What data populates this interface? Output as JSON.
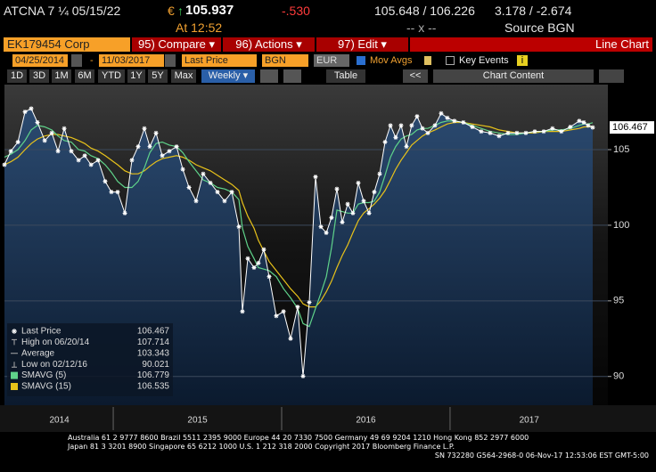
{
  "header": {
    "ticker": "ATCNA 7 ¼ 05/15/22",
    "currency": "€",
    "arrow": "↑",
    "price": "105.937",
    "change": "-.530",
    "bid_ask": "105.648 / 106.226",
    "yields": "3.178 / -2.674",
    "time": "At 12:52",
    "size": "-- x --",
    "source": "Source BGN"
  },
  "toolbar": {
    "security": "EK179454 Corp",
    "menus": [
      "95) Compare ▾",
      "96) Actions ▾",
      "97) Edit ▾"
    ],
    "view": "Line Chart"
  },
  "controls": {
    "start": "04/25/2014",
    "separator": "-",
    "end": "11/03/2017",
    "field": "Last Price",
    "source": "BGN",
    "currency": "EUR",
    "mov_avgs": "Mov Avgs",
    "key_events": "Key Events",
    "info": "i"
  },
  "ranges": [
    "1D",
    "3D",
    "1M",
    "6M",
    "YTD",
    "1Y",
    "5Y",
    "Max"
  ],
  "period": "Weekly ▾",
  "table": "Table",
  "back": "<<",
  "chart_content": "Chart Content",
  "chart_data": {
    "type": "line",
    "x": [
      2014.354,
      2014.392,
      2014.434,
      2014.476,
      2014.513,
      2014.55,
      2014.593,
      2014.635,
      2014.672,
      2014.709,
      2014.751,
      2014.794,
      2014.831,
      2014.868,
      2014.91,
      2014.952,
      2014.989,
      2015.026,
      2015.069,
      2015.111,
      2015.148,
      2015.185,
      2015.217,
      2015.254,
      2015.291,
      2015.333,
      2015.376,
      2015.413,
      2015.45,
      2015.492,
      2015.534,
      2015.577,
      2015.619,
      2015.661,
      2015.704,
      2015.746,
      2015.767,
      2015.799,
      2015.836,
      2015.862,
      2015.894,
      2015.926,
      2015.968,
      2016.011,
      2016.053,
      2016.095,
      2016.127,
      2016.164,
      2016.201,
      2016.233,
      2016.265,
      2016.296,
      2016.328,
      2016.36,
      2016.392,
      2016.423,
      2016.455,
      2016.487,
      2016.519,
      2016.55,
      2016.582,
      2016.614,
      2016.646,
      2016.677,
      2016.709,
      2016.741,
      2016.772,
      2016.804,
      2016.836,
      2016.868,
      2016.91,
      2016.947,
      2016.984,
      2017.026,
      2017.079,
      2017.132,
      2017.185,
      2017.238,
      2017.291,
      2017.344,
      2017.397,
      2017.45,
      2017.503,
      2017.556,
      2017.608,
      2017.661,
      2017.714,
      2017.767,
      2017.794,
      2017.82,
      2017.847
    ],
    "series": [
      {
        "name": "Last Price",
        "color": "#ffffff",
        "last_value": 106.467,
        "values": [
          104.0,
          104.9,
          105.5,
          107.5,
          107.714,
          106.8,
          105.6,
          106.1,
          104.9,
          106.4,
          104.9,
          104.3,
          104.6,
          104.0,
          104.3,
          102.9,
          102.2,
          102.2,
          100.8,
          104.3,
          105.2,
          106.4,
          105.2,
          106.1,
          104.6,
          104.9,
          105.2,
          103.7,
          102.5,
          101.6,
          103.4,
          102.8,
          102.2,
          101.6,
          102.2,
          99.9,
          94.3,
          97.8,
          97.2,
          97.5,
          98.4,
          96.6,
          94.0,
          94.3,
          92.5,
          94.6,
          90.021,
          94.9,
          103.2,
          99.9,
          99.5,
          100.5,
          102.4,
          100.2,
          101.4,
          100.8,
          102.8,
          101.6,
          100.8,
          102.2,
          103.4,
          105.5,
          106.6,
          105.8,
          106.6,
          105.2,
          106.6,
          107.2,
          106.4,
          106.1,
          106.6,
          107.4,
          107.1,
          106.9,
          106.8,
          106.5,
          106.2,
          106.1,
          105.9,
          106.1,
          106.1,
          106.1,
          106.2,
          106.2,
          106.4,
          106.2,
          106.5,
          106.9,
          106.8,
          106.6,
          106.467
        ]
      },
      {
        "name": "SMAVG (5)",
        "color": "#5fd38a",
        "last_value": 106.779,
        "values": [
          104.5,
          104.7,
          105.0,
          105.6,
          106.3,
          106.6,
          106.5,
          106.3,
          105.9,
          105.6,
          105.5,
          105.0,
          104.9,
          104.6,
          104.4,
          104.0,
          103.5,
          102.9,
          102.5,
          102.5,
          102.9,
          103.8,
          104.8,
          105.4,
          105.5,
          105.3,
          105.2,
          104.8,
          104.2,
          103.6,
          103.0,
          102.8,
          102.5,
          102.4,
          102.2,
          101.7,
          99.8,
          98.6,
          97.8,
          97.2,
          97.1,
          97.0,
          96.6,
          95.8,
          95.2,
          94.5,
          93.5,
          93.3,
          94.5,
          95.5,
          96.6,
          98.5,
          101.0,
          100.9,
          100.8,
          100.8,
          101.4,
          101.5,
          101.5,
          101.6,
          102.2,
          103.3,
          104.5,
          105.2,
          105.7,
          105.9,
          106.0,
          106.3,
          106.4,
          106.4,
          106.6,
          106.8,
          106.9,
          106.9,
          106.8,
          106.6,
          106.4,
          106.2,
          106.1,
          106.0,
          106.0,
          106.1,
          106.2,
          106.2,
          106.3,
          106.3,
          106.4,
          106.6,
          106.7,
          106.7,
          106.779
        ]
      },
      {
        "name": "SMAVG (15)",
        "color": "#e8c21a",
        "last_value": 106.535,
        "values": [
          104.0,
          104.2,
          104.5,
          105.0,
          105.4,
          105.7,
          105.9,
          106.0,
          106.0,
          105.9,
          105.8,
          105.6,
          105.4,
          105.1,
          104.9,
          104.6,
          104.3,
          104.0,
          103.6,
          103.4,
          103.4,
          103.6,
          103.9,
          104.2,
          104.4,
          104.5,
          104.6,
          104.5,
          104.3,
          104.0,
          103.8,
          103.6,
          103.3,
          103.0,
          102.7,
          102.3,
          101.5,
          100.6,
          99.8,
          99.0,
          98.3,
          97.6,
          97.0,
          96.4,
          95.8,
          95.3,
          94.8,
          94.6,
          94.6,
          95.0,
          95.6,
          96.3,
          97.2,
          98.0,
          98.7,
          99.5,
          100.3,
          100.8,
          101.1,
          101.4,
          101.8,
          102.3,
          103.0,
          103.7,
          104.3,
          104.8,
          105.3,
          105.6,
          105.9,
          106.1,
          106.3,
          106.5,
          106.7,
          106.8,
          106.8,
          106.7,
          106.6,
          106.5,
          106.3,
          106.2,
          106.1,
          106.1,
          106.1,
          106.2,
          106.2,
          106.2,
          106.3,
          106.4,
          106.5,
          106.5,
          106.535
        ]
      }
    ],
    "stats": [
      {
        "label": "High on 06/20/14",
        "value": 107.714
      },
      {
        "label": "Average",
        "value": 103.343
      },
      {
        "label": "Low on 02/12/16",
        "value": 90.021
      }
    ],
    "xlim": [
      2014.354,
      2017.937
    ],
    "xticks": [
      {
        "value": 2014.68,
        "label": "2014"
      },
      {
        "value": 2015.5,
        "label": "2015"
      },
      {
        "value": 2016.5,
        "label": "2016"
      },
      {
        "value": 2017.47,
        "label": "2017"
      }
    ],
    "x_dividers": [
      2015,
      2016,
      2017
    ],
    "ylim": [
      88.1,
      109.3
    ],
    "yticks": [
      90,
      95,
      100,
      105
    ],
    "grid": true
  },
  "footer": [
    "Australia 61 2 9777 8600 Brazil 5511 2395 9000 Europe 44 20 7330 7500 Germany 49 69 9204 1210 Hong Kong 852 2977 6000",
    "Japan 81 3 3201 8900      Singapore 65 6212 1000      U.S. 1 212 318 2000      Copyright 2017 Bloomberg Finance L.P.",
    "SN 732280 G564-2968-0 06-Nov-17 12:53:06 EST  GMT-5:00"
  ]
}
